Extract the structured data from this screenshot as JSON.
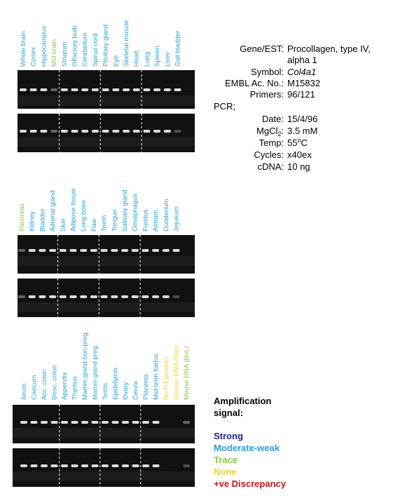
{
  "panels": [
    {
      "lanes": [
        {
          "label": "Whole brain",
          "color": "#2a9fd8"
        },
        {
          "label": "Cortex",
          "color": "#2a9fd8"
        },
        {
          "label": "Hippocampus",
          "color": "#2a9fd8"
        },
        {
          "label": "Mid brain",
          "color": "#8cc63f"
        },
        {
          "label": "Striatum",
          "color": "#2a9fd8"
        },
        {
          "label": "Olfactory bulb",
          "color": "#2a9fd8"
        },
        {
          "label": "Cerebellum",
          "color": "#2a9fd8"
        },
        {
          "label": "Spinal cord",
          "color": "#2a9fd8"
        },
        {
          "label": "Pituitary gland",
          "color": "#2a9fd8"
        },
        {
          "label": "Eye",
          "color": "#2a9fd8"
        },
        {
          "label": "Skeletal muscle",
          "color": "#2a9fd8"
        },
        {
          "label": "Heart",
          "color": "#2a9fd8"
        },
        {
          "label": "Lung",
          "color": "#2a9fd8"
        },
        {
          "label": "Spleen",
          "color": "#2a9fd8"
        },
        {
          "label": "Liver",
          "color": "#2a9fd8"
        },
        {
          "label": "Gall bladder",
          "color": "#2a9fd8"
        }
      ]
    },
    {
      "lanes": [
        {
          "label": "Pancreas",
          "color": "#8cc63f"
        },
        {
          "label": "Kidney",
          "color": "#2a9fd8"
        },
        {
          "label": "Bladder",
          "color": "#2a9fd8"
        },
        {
          "label": "Adrenal gland",
          "color": "#2a9fd8"
        },
        {
          "label": "Skin",
          "color": "#2a9fd8"
        },
        {
          "label": "Adipose tissue",
          "color": "#2a9fd8"
        },
        {
          "label": "Long bone",
          "color": "#2a9fd8"
        },
        {
          "label": "Paw",
          "color": "#2a9fd8"
        },
        {
          "label": "Teeth",
          "color": "#2a9fd8"
        },
        {
          "label": "Tongue",
          "color": "#2a9fd8"
        },
        {
          "label": "Salivary gland",
          "color": "#2a9fd8"
        },
        {
          "label": "Oesophagus",
          "color": "#2a9fd8"
        },
        {
          "label": "Fundus",
          "color": "#2a9fd8"
        },
        {
          "label": "Antrum",
          "color": "#2a9fd8"
        },
        {
          "label": "Duodenum",
          "color": "#2a9fd8"
        },
        {
          "label": "Jejunum",
          "color": "#2a9fd8"
        }
      ]
    },
    {
      "lanes": [
        {
          "label": "Ileum",
          "color": "#2a9fd8"
        },
        {
          "label": "Caecum",
          "color": "#2a9fd8"
        },
        {
          "label": "Asc. colon",
          "color": "#2a9fd8"
        },
        {
          "label": "Desc. colon",
          "color": "#2a9fd8"
        },
        {
          "label": "Appendix",
          "color": "#2a9fd8"
        },
        {
          "label": "Thymus",
          "color": "#2a9fd8"
        },
        {
          "label": "Mamm.gland non-preg.",
          "color": "#2a9fd8"
        },
        {
          "label": "Mamm.gland preg.",
          "color": "#2a9fd8"
        },
        {
          "label": "Testis",
          "color": "#2a9fd8"
        },
        {
          "label": "Epididymis",
          "color": "#2a9fd8"
        },
        {
          "label": "Ovary",
          "color": "#2a9fd8"
        },
        {
          "label": "Cervix",
          "color": "#2a9fd8"
        },
        {
          "label": "Placenta",
          "color": "#2a9fd8"
        },
        {
          "label": "Mid-term foetus",
          "color": "#2a9fd8"
        },
        {
          "label": "No RT product",
          "color": "#f2cf3a"
        },
        {
          "label": "Human DNA (Top)",
          "color": "#f2cf3a"
        },
        {
          "label": "Mouse DNA (Bot.)",
          "color": "#8cc63f"
        }
      ]
    }
  ],
  "info": {
    "gene_key": "Gene/EST:",
    "gene_line1": "Procollagen, type IV,",
    "gene_line2": "alpha 1",
    "symbol_key": "Symbol:",
    "symbol": "Col4a1",
    "embl_key": "EMBL Ac. No.:",
    "embl": "M15832",
    "primers_key": "Primers:",
    "primers": "96/121",
    "pcr": "PCR;",
    "date_key": "Date:",
    "date": "15/4/96",
    "mgcl_key": "MgCl",
    "mgcl_sub": "2",
    "mgcl_colon": ":",
    "mgcl": "3.5 mM",
    "temp_key": "Temp:",
    "temp_num": "55",
    "temp_sup": "o",
    "temp_unit": "C",
    "cycles_key": "Cycles:",
    "cycles": "x40ex",
    "cdna_key": "cDNA:",
    "cdna": "10 ng"
  },
  "legend": {
    "title_line1": "Amplification",
    "title_line2": "signal:",
    "items": [
      {
        "label": "Strong",
        "color": "#1a1f8c"
      },
      {
        "label": "Moderate-weak",
        "color": "#2a9fd8"
      },
      {
        "label": "Trace",
        "color": "#8cc63f"
      },
      {
        "label": "None",
        "color": "#f2cf3a"
      },
      {
        "label": "+ve Discrepancy",
        "color": "#c3161c"
      }
    ]
  }
}
